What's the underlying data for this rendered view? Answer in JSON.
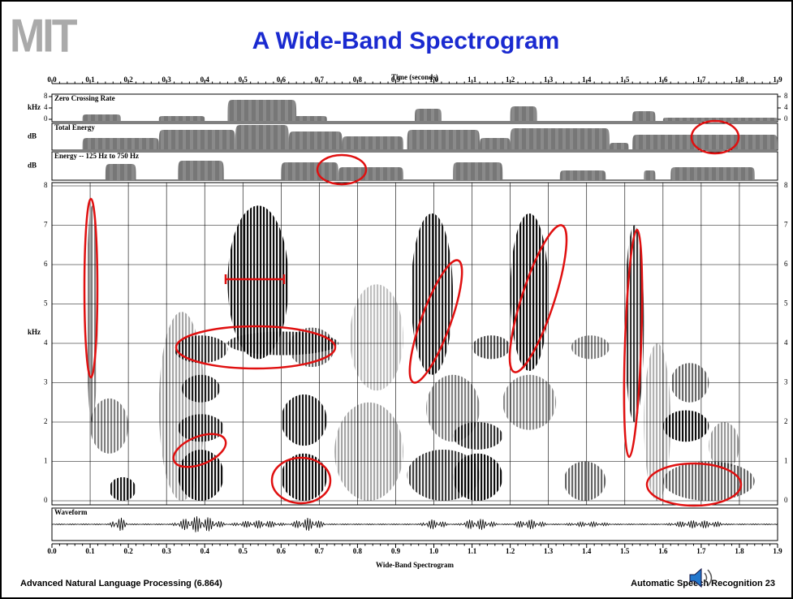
{
  "header": {
    "logo": "MIT",
    "title": "A Wide-Band Spectrogram"
  },
  "time_axis": {
    "label": "Time (seconds)",
    "ticks": [
      "0.0",
      "0.1",
      "0.2",
      "0.3",
      "0.4",
      "0.5",
      "0.6",
      "0.7",
      "0.8",
      "0.9",
      "1.0",
      "1.1",
      "1.2",
      "1.3",
      "1.4",
      "1.5",
      "1.6",
      "1.7",
      "1.8",
      "1.9"
    ]
  },
  "panels": [
    {
      "title": "Zero Crossing Rate",
      "unit": "kHz",
      "ticks": [
        "8",
        "4",
        "0"
      ]
    },
    {
      "title": "Total Energy",
      "unit": "dB"
    },
    {
      "title": "Energy -- 125 Hz to 750 Hz",
      "unit": "dB"
    }
  ],
  "spectrogram": {
    "unit": "kHz",
    "ticks": [
      "0",
      "1",
      "2",
      "3",
      "4",
      "5",
      "6",
      "7",
      "8"
    ],
    "caption": "Wide-Band Spectrogram"
  },
  "waveform": {
    "title": "Waveform"
  },
  "footer": {
    "left": "Advanced Natural Language Processing (6.864)",
    "right": "Automatic Speech Recognition 23"
  }
}
